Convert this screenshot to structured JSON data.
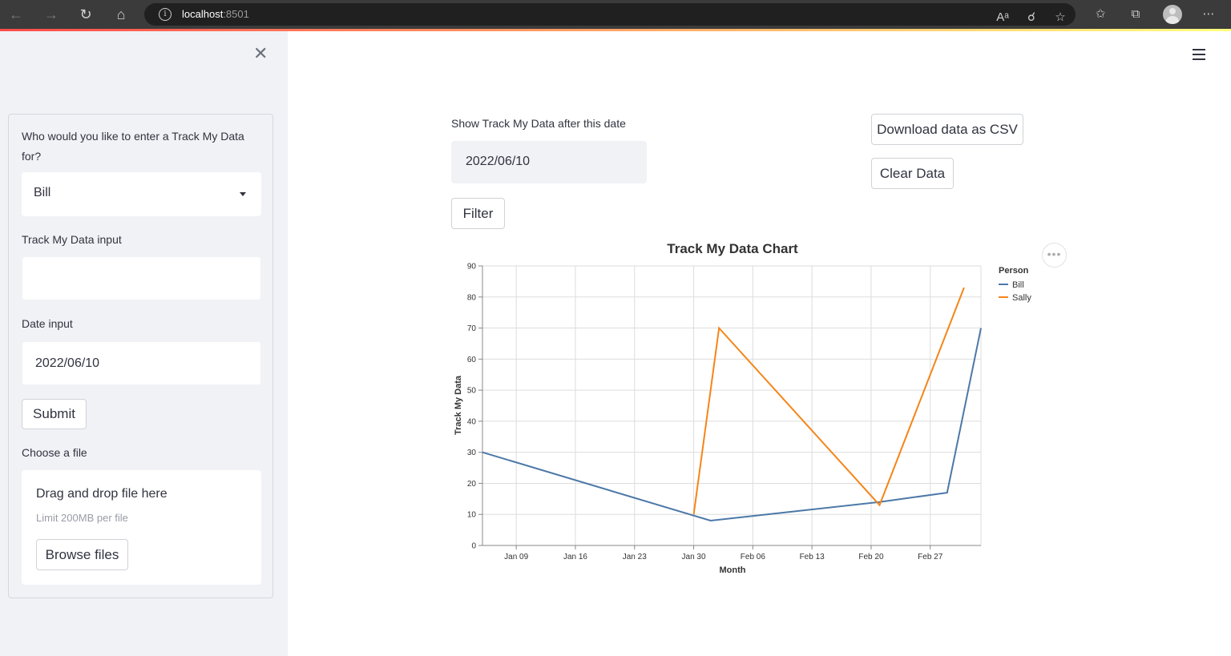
{
  "browser": {
    "host": "localhost",
    "port": ":8501"
  },
  "sidebar": {
    "person_label": "Who would you like to enter a Track My Data for?",
    "person_value": "Bill",
    "data_input_label": "Track My Data input",
    "data_input_value": "",
    "date_input_label": "Date input",
    "date_input_value": "2022/06/10",
    "submit_label": "Submit",
    "file_label": "Choose a file",
    "drop_title": "Drag and drop file here",
    "drop_limit": "Limit 200MB per file",
    "browse_label": "Browse files"
  },
  "main": {
    "filter_label": "Show Track My Data after this date",
    "filter_date": "2022/06/10",
    "filter_button": "Filter",
    "download_button": "Download data as CSV",
    "clear_button": "Clear Data"
  },
  "chart_data": {
    "type": "line",
    "title": "Track My Data Chart",
    "xlabel": "Month",
    "ylabel": "Track My Data",
    "x_ticks": [
      "Jan 09",
      "Jan 16",
      "Jan 23",
      "Jan 30",
      "Feb 06",
      "Feb 13",
      "Feb 20",
      "Feb 27"
    ],
    "y_ticks": [
      "0",
      "10",
      "20",
      "30",
      "40",
      "50",
      "60",
      "70",
      "80",
      "90"
    ],
    "xlim": [
      "2022-01-05",
      "2022-03-05"
    ],
    "ylim": [
      0,
      90
    ],
    "grid": true,
    "legend_title": "Person",
    "legend_position": "right",
    "series": [
      {
        "name": "Bill",
        "color": "#4c78a8",
        "points": [
          [
            "2022-01-05",
            30
          ],
          [
            "2022-02-01",
            8
          ],
          [
            "2022-02-21",
            14
          ],
          [
            "2022-03-01",
            17
          ],
          [
            "2022-03-05",
            70
          ]
        ]
      },
      {
        "name": "Sally",
        "color": "#f58518",
        "points": [
          [
            "2022-01-30",
            10
          ],
          [
            "2022-02-02",
            70
          ],
          [
            "2022-02-21",
            13
          ],
          [
            "2022-03-03",
            83
          ]
        ]
      }
    ]
  }
}
